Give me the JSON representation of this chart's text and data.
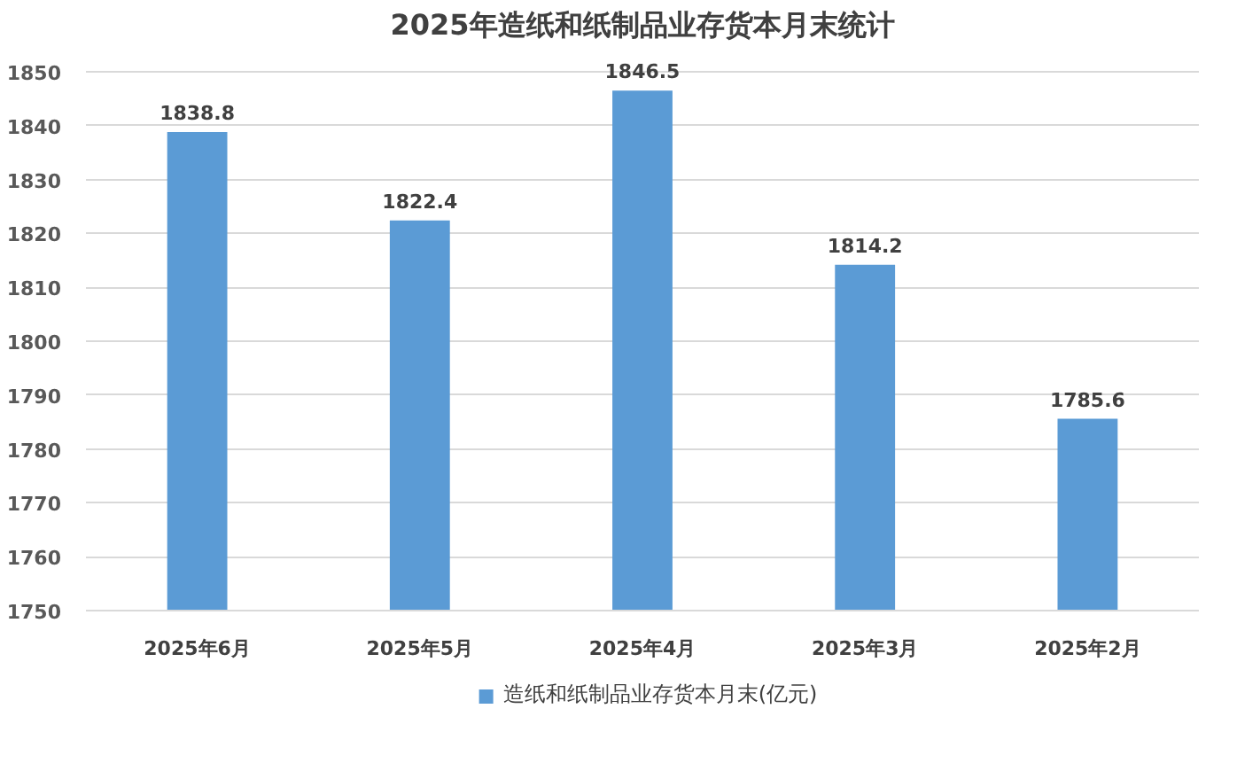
{
  "chart_data": {
    "type": "bar",
    "title": "2025年造纸和纸制品业存货本月末统计",
    "categories": [
      "2025年6月",
      "2025年5月",
      "2025年4月",
      "2025年3月",
      "2025年2月"
    ],
    "series": [
      {
        "name": "造纸和纸制品业存货本月末(亿元)",
        "color": "#5b9bd5",
        "values": [
          1838.8,
          1822.4,
          1846.5,
          1814.2,
          1785.6
        ]
      }
    ],
    "ylim": [
      1750,
      1850
    ],
    "yticks": [
      1750,
      1760,
      1770,
      1780,
      1790,
      1800,
      1810,
      1820,
      1830,
      1840,
      1850
    ],
    "grid": "y",
    "legend": "bottom",
    "data_labels": true
  }
}
